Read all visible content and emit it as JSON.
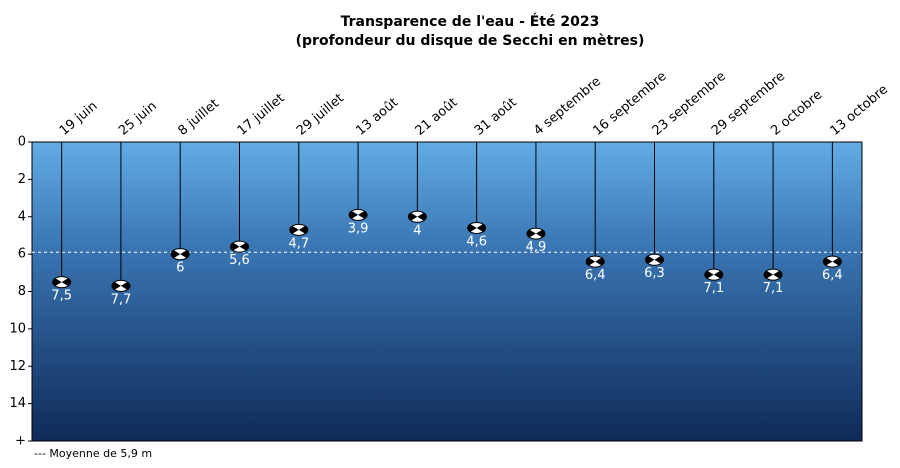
{
  "chart_data": {
    "type": "lollipop",
    "title": "Transparence de l'eau - Été 2023",
    "subtitle": "(profondeur du disque de Secchi en mètres)",
    "categories": [
      "19 juin",
      "25 juin",
      "8 juillet",
      "17 juillet",
      "29 juillet",
      "13 août",
      "21 août",
      "31 août",
      "4 septembre",
      "16 septembre",
      "23 septembre",
      "29 septembre",
      "2 octobre",
      "13 octobre"
    ],
    "values": [
      7.5,
      7.7,
      6,
      5.6,
      4.7,
      3.9,
      4,
      4.6,
      4.9,
      6.4,
      6.3,
      7.1,
      7.1,
      6.4
    ],
    "value_labels": [
      "7,5",
      "7,7",
      "6",
      "5,6",
      "4,7",
      "3,9",
      "4",
      "4,6",
      "4,9",
      "6,4",
      "6,3",
      "7,1",
      "7,1",
      "6,4"
    ],
    "mean": 5.9,
    "legend_text": "--- Moyenne de 5,9 m",
    "ylim": [
      0,
      16
    ],
    "yticks": [
      0,
      2,
      4,
      6,
      8,
      10,
      12,
      14,
      {
        "value": 16,
        "label": "+"
      }
    ],
    "y_inverted": true
  }
}
